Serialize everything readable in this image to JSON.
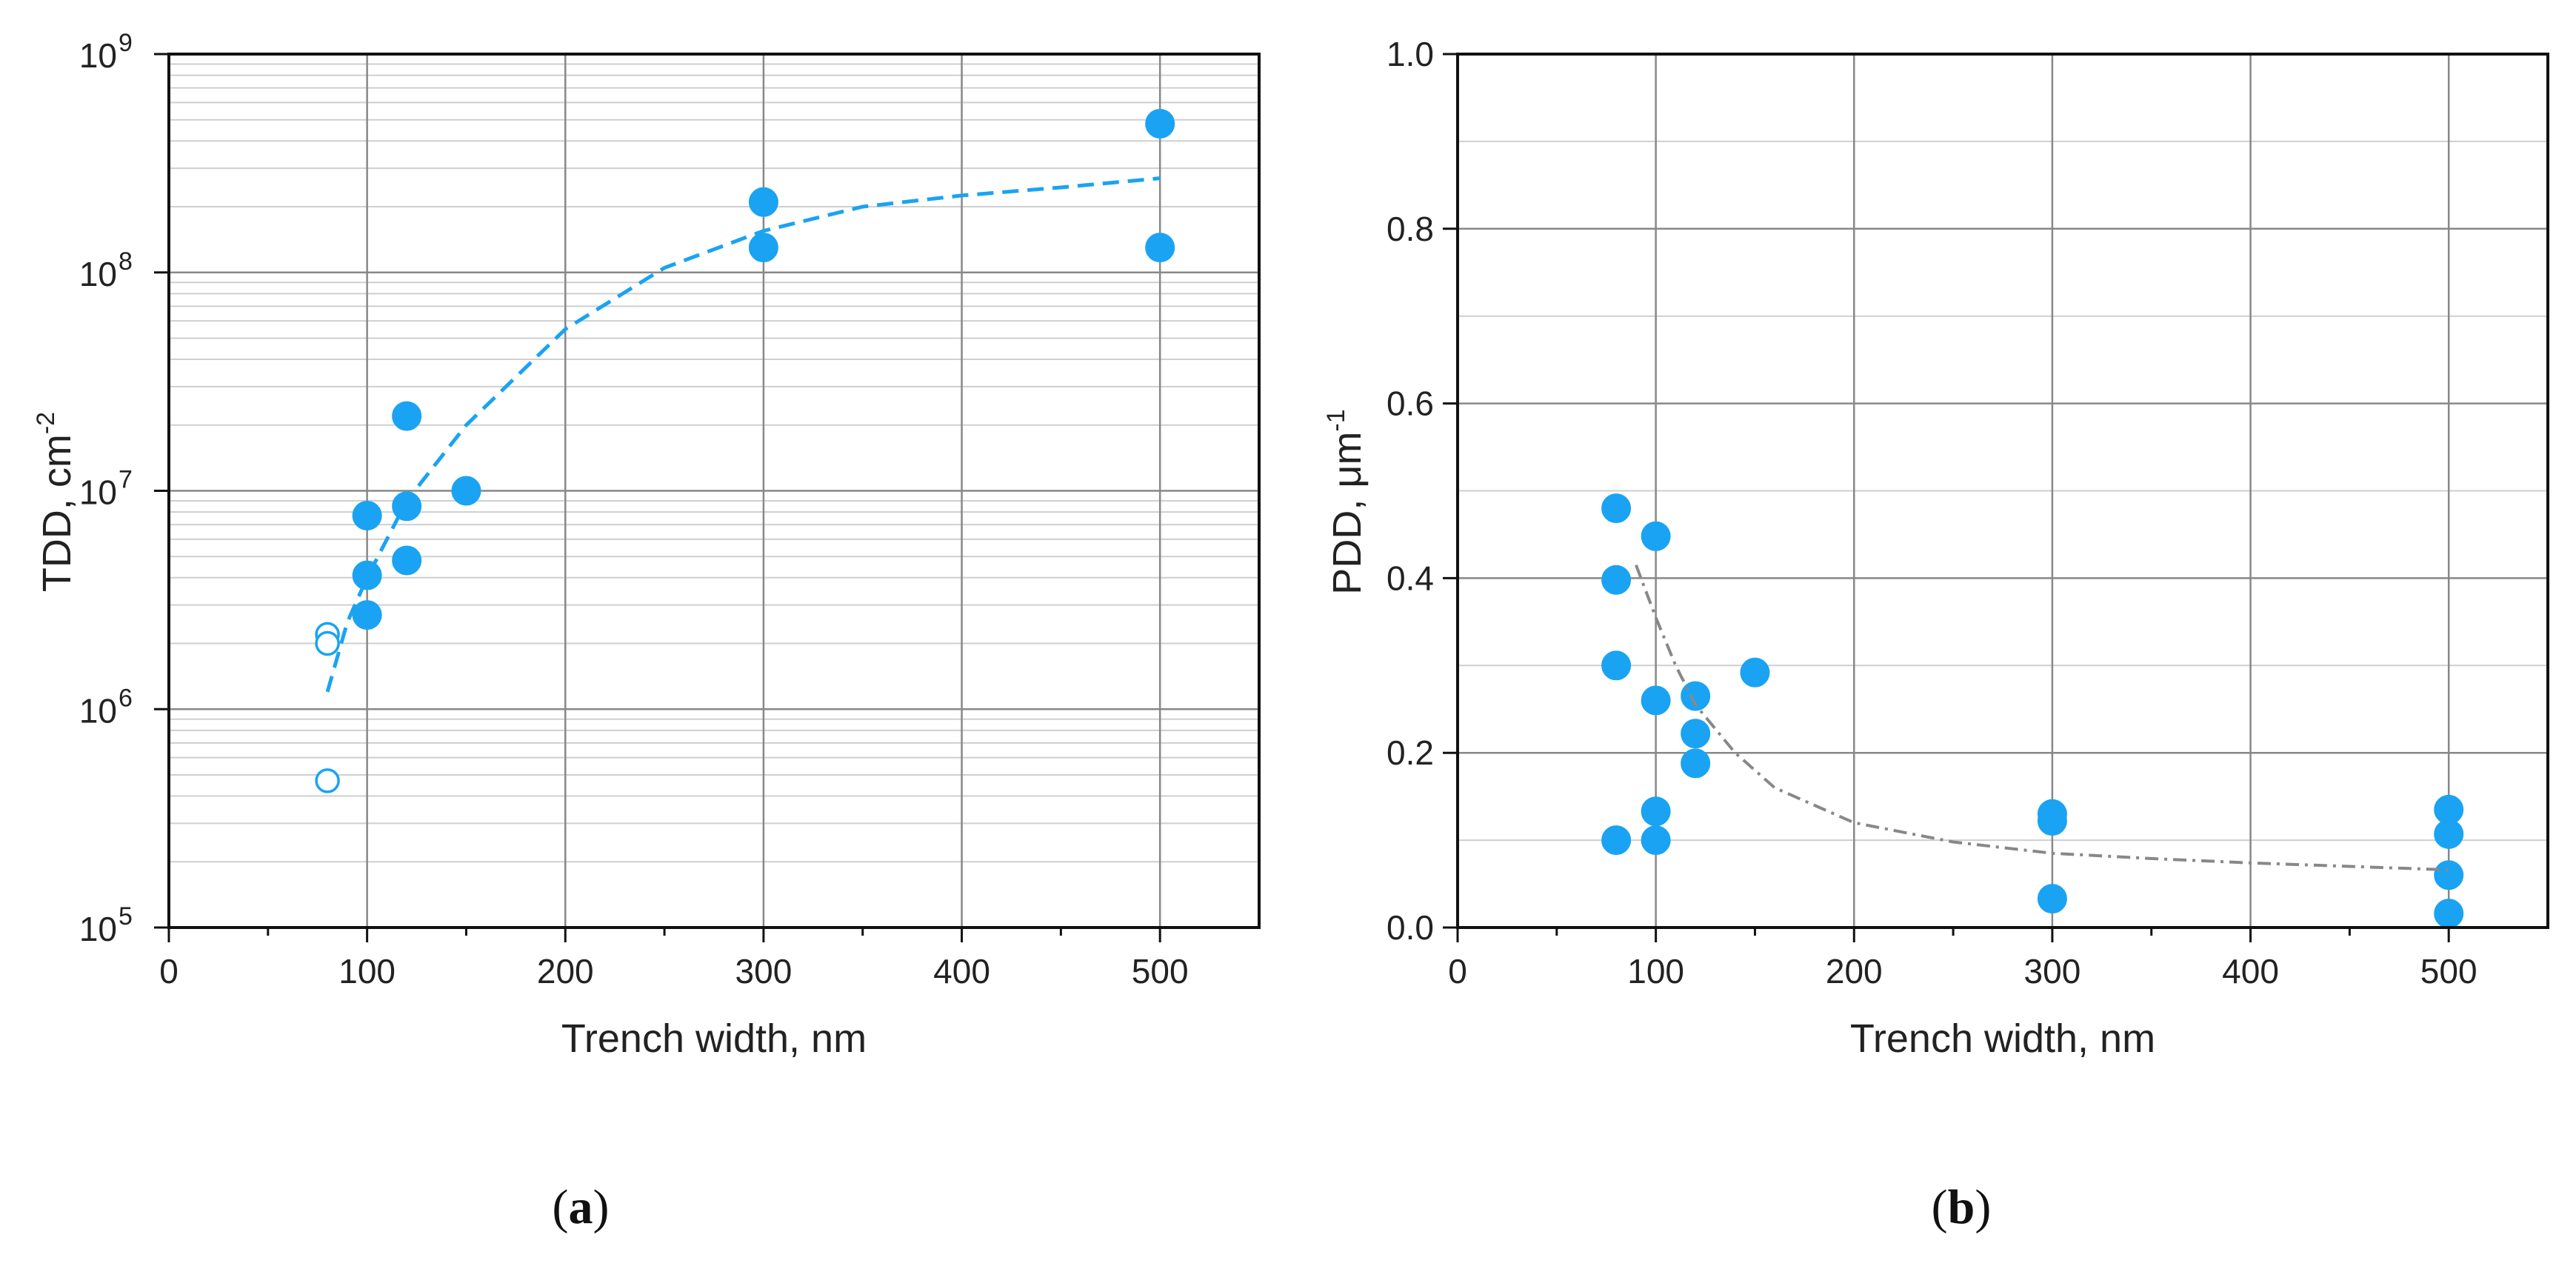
{
  "chart_data": [
    {
      "panel": "a",
      "type": "scatter",
      "yscale": "log",
      "xlabel": "Trench width, nm",
      "ylabel": "TDD, cm",
      "ylabel_sup": "-2",
      "xlim": [
        0,
        550
      ],
      "ylim": [
        100000,
        1000000000
      ],
      "grid": true,
      "x_ticks": [
        0,
        100,
        200,
        300,
        400,
        500
      ],
      "x_tick_labels": [
        "0",
        "100",
        "200",
        "300",
        "400",
        "500"
      ],
      "y_ticks": [
        100000,
        1000000,
        10000000,
        100000000,
        1000000000
      ],
      "y_tick_labels": [
        {
          "base": "10",
          "exp": "5"
        },
        {
          "base": "10",
          "exp": "6"
        },
        {
          "base": "10",
          "exp": "7"
        },
        {
          "base": "10",
          "exp": "8"
        },
        {
          "base": "10",
          "exp": "9"
        }
      ],
      "series": [
        {
          "name": "filled",
          "marker": "filled-circle",
          "color": "#1aa3f2",
          "points": [
            [
              100,
              7700000
            ],
            [
              100,
              4100000
            ],
            [
              100,
              2700000
            ],
            [
              120,
              22000000
            ],
            [
              120,
              8500000
            ],
            [
              120,
              4800000
            ],
            [
              150,
              10000000
            ],
            [
              300,
              210000000
            ],
            [
              300,
              130000000
            ],
            [
              500,
              480000000
            ],
            [
              500,
              130000000
            ]
          ]
        },
        {
          "name": "open",
          "marker": "open-circle",
          "color": "#1aa3f2",
          "points": [
            [
              80,
              2200000
            ],
            [
              80,
              2000000
            ],
            [
              80,
              470000
            ]
          ]
        },
        {
          "name": "fit",
          "type": "line",
          "style": "dashed",
          "color": "#1aa3f2",
          "points": [
            [
              80,
              1200000
            ],
            [
              90,
              2500000
            ],
            [
              100,
              4000000
            ],
            [
              120,
              9000000
            ],
            [
              150,
              20000000
            ],
            [
              200,
              55000000
            ],
            [
              250,
              105000000
            ],
            [
              300,
              155000000
            ],
            [
              350,
              200000000
            ],
            [
              400,
              225000000
            ],
            [
              450,
              245000000
            ],
            [
              500,
              270000000
            ]
          ]
        }
      ],
      "panel_label": "a"
    },
    {
      "panel": "b",
      "type": "scatter",
      "xlabel": "Trench width, nm",
      "ylabel": "PDD, μm",
      "ylabel_sup": "-1",
      "xlim": [
        0,
        550
      ],
      "ylim": [
        0,
        1.0
      ],
      "grid": true,
      "x_ticks": [
        0,
        100,
        200,
        300,
        400,
        500
      ],
      "x_tick_labels": [
        "0",
        "100",
        "200",
        "300",
        "400",
        "500"
      ],
      "y_ticks": [
        0.0,
        0.2,
        0.4,
        0.6,
        0.8,
        1.0
      ],
      "y_tick_labels": [
        "0.0",
        "0.2",
        "0.4",
        "0.6",
        "0.8",
        "1.0"
      ],
      "series": [
        {
          "name": "filled",
          "marker": "filled-circle",
          "color": "#1aa3f2",
          "points": [
            [
              80,
              0.48
            ],
            [
              80,
              0.398
            ],
            [
              80,
              0.3
            ],
            [
              80,
              0.1
            ],
            [
              100,
              0.448
            ],
            [
              100,
              0.26
            ],
            [
              100,
              0.133
            ],
            [
              100,
              0.1
            ],
            [
              120,
              0.265
            ],
            [
              120,
              0.222
            ],
            [
              120,
              0.188
            ],
            [
              150,
              0.292
            ],
            [
              300,
              0.13
            ],
            [
              300,
              0.122
            ],
            [
              300,
              0.033
            ],
            [
              500,
              0.135
            ],
            [
              500,
              0.107
            ],
            [
              500,
              0.06
            ],
            [
              500,
              0.016
            ]
          ]
        },
        {
          "name": "fit",
          "type": "line",
          "style": "dash-dot",
          "color": "#888888",
          "points": [
            [
              90,
              0.415
            ],
            [
              100,
              0.355
            ],
            [
              110,
              0.3
            ],
            [
              120,
              0.255
            ],
            [
              140,
              0.2
            ],
            [
              160,
              0.16
            ],
            [
              200,
              0.12
            ],
            [
              250,
              0.098
            ],
            [
              300,
              0.085
            ],
            [
              350,
              0.079
            ],
            [
              400,
              0.074
            ],
            [
              450,
              0.07
            ],
            [
              500,
              0.066
            ]
          ]
        }
      ],
      "panel_label": "b"
    }
  ]
}
